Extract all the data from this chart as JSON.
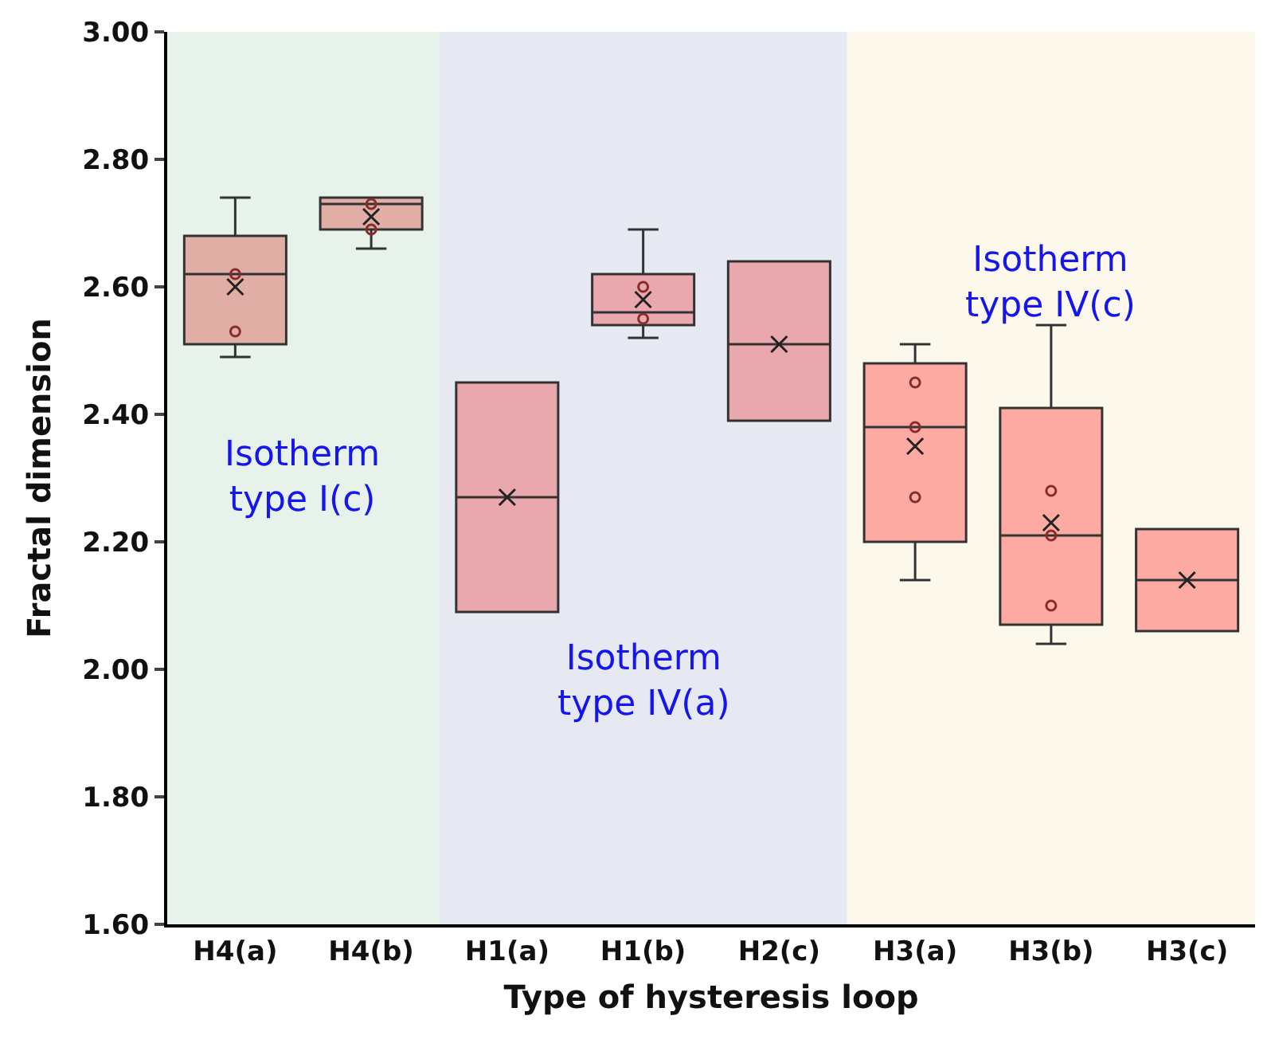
{
  "chart_data": {
    "type": "box",
    "xlabel": "Type of hysteresis loop",
    "ylabel": "Fractal dimension",
    "categories": [
      "H4(a)",
      "H4(b)",
      "H1(a)",
      "H1(b)",
      "H2(c)",
      "H3(a)",
      "H3(b)",
      "H3(c)"
    ],
    "boxes": [
      {
        "low": 2.49,
        "q1": 2.51,
        "median": 2.62,
        "q3": 2.68,
        "high": 2.74,
        "mean": 2.6
      },
      {
        "low": 2.66,
        "q1": 2.69,
        "median": 2.73,
        "q3": 2.74,
        "high": 2.74,
        "mean": 2.71
      },
      {
        "low": 2.09,
        "q1": 2.09,
        "median": 2.27,
        "q3": 2.45,
        "high": 2.45,
        "mean": 2.27
      },
      {
        "low": 2.52,
        "q1": 2.54,
        "median": 2.56,
        "q3": 2.62,
        "high": 2.69,
        "mean": 2.58
      },
      {
        "low": 2.39,
        "q1": 2.39,
        "median": 2.51,
        "q3": 2.64,
        "high": 2.64,
        "mean": 2.51
      },
      {
        "low": 2.14,
        "q1": 2.2,
        "median": 2.38,
        "q3": 2.48,
        "high": 2.51,
        "mean": 2.35
      },
      {
        "low": 2.04,
        "q1": 2.07,
        "median": 2.21,
        "q3": 2.41,
        "high": 2.54,
        "mean": 2.23
      },
      {
        "low": 2.06,
        "q1": 2.06,
        "median": 2.14,
        "q3": 2.22,
        "high": 2.22,
        "mean": 2.14
      }
    ],
    "colors": [
      "#e0aea4",
      "#e0aea4",
      "#e8a8ae",
      "#e8a8ae",
      "#e8a8ae",
      "#fcaaa2",
      "#fcaaa2",
      "#fcaaa2"
    ],
    "series": [
      {
        "type": "scatter",
        "color": "#8b2a2a",
        "x": [
          "H4(a)",
          "H4(a)",
          "H4(b)",
          "H4(b)",
          "H1(b)",
          "H1(b)",
          "H3(a)",
          "H3(a)",
          "H3(a)",
          "H3(b)",
          "H3(b)",
          "H3(b)"
        ],
        "values": [
          2.62,
          2.53,
          2.73,
          2.69,
          2.6,
          2.55,
          2.45,
          2.38,
          2.27,
          2.28,
          2.21,
          2.1
        ]
      }
    ],
    "marker": "circle",
    "ylim": [
      1.6,
      3.0
    ],
    "yticks": [
      {
        "value": 1.6,
        "label": "1.60"
      },
      {
        "value": 1.8,
        "label": "1.80"
      },
      {
        "value": 2.0,
        "label": "2.00"
      },
      {
        "value": 2.2,
        "label": "2.20"
      },
      {
        "value": 2.4,
        "label": "2.40"
      },
      {
        "value": 2.6,
        "label": "2.60"
      },
      {
        "value": 2.8,
        "label": "2.80"
      },
      {
        "value": 3.0,
        "label": "3.00"
      }
    ],
    "grid": false,
    "bands": [
      {
        "axis": "x",
        "from": "H4(a)",
        "to": "H4(b)",
        "label": "Isotherm\ntype I(c)",
        "color": "#e6f2ea"
      },
      {
        "axis": "x",
        "from": "H1(a)",
        "to": "H2(c)",
        "label": "Isotherm\ntype IV(a)",
        "color": "#e6e9f2"
      },
      {
        "axis": "x",
        "from": "H3(a)",
        "to": "H3(c)",
        "label": "Isotherm\ntype IV(c)",
        "color": "#fcf8ec"
      }
    ]
  }
}
